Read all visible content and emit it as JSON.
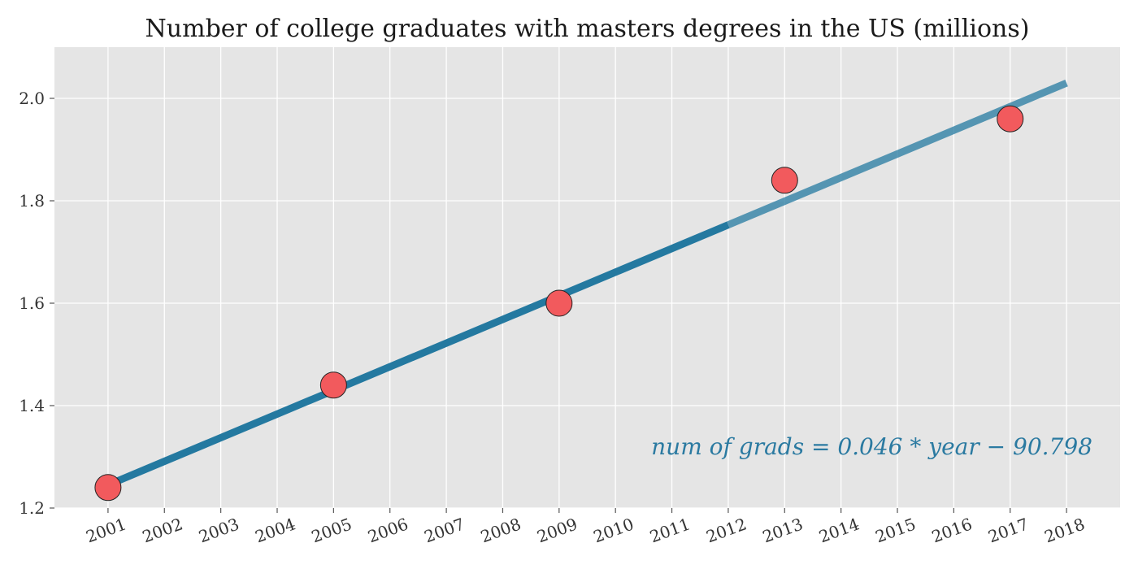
{
  "chart_data": {
    "type": "scatter",
    "title": "Number of college graduates with masters degrees in the US (millions)",
    "xlabel": "",
    "ylabel": "",
    "x_ticks": [
      "2001",
      "2002",
      "2003",
      "2004",
      "2005",
      "2006",
      "2007",
      "2008",
      "2009",
      "2010",
      "2011",
      "2012",
      "2013",
      "2014",
      "2015",
      "2016",
      "2017",
      "2018"
    ],
    "y_ticks": [
      "1.2",
      "1.4",
      "1.6",
      "1.8",
      "2.0"
    ],
    "xlim": [
      2000.05,
      2018.95
    ],
    "ylim": [
      1.2,
      2.1
    ],
    "grid": true,
    "points": {
      "x": [
        2001,
        2005,
        2009,
        2013,
        2017
      ],
      "y": [
        1.24,
        1.44,
        1.6,
        1.84,
        1.96
      ]
    },
    "fit_line": {
      "x": [
        2001,
        2018
      ],
      "y": [
        1.245,
        2.03
      ],
      "solid_until_x": 2012
    },
    "annotation": "num of grads = 0.046 * year − 90.798",
    "colors": {
      "plot_background": "#e5e5e5",
      "grid": "#ffffff",
      "points": "#f25a5d",
      "point_edge": "#222222",
      "line": "#2479a0",
      "annotation": "#2b7aa1"
    }
  }
}
